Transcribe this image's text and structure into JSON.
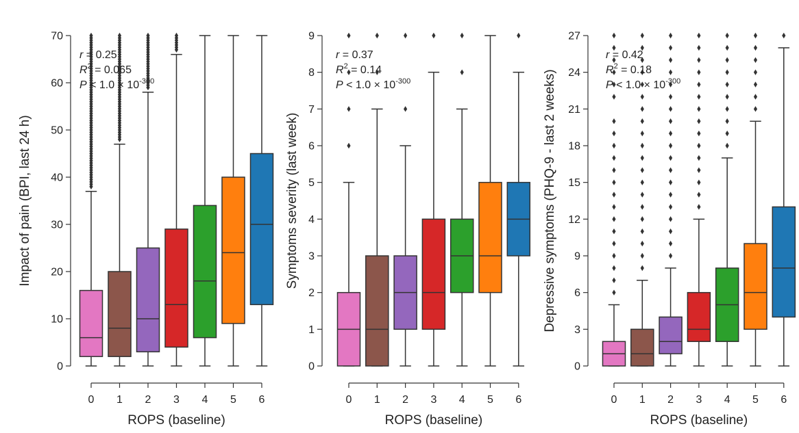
{
  "chart_data": [
    {
      "type": "box",
      "xlabel": "ROPS (baseline)",
      "ylabel": "Impact of pain (BPI, last 24 h)",
      "categories": [
        "0",
        "1",
        "2",
        "3",
        "4",
        "5",
        "6"
      ],
      "colors": [
        "#e377c2",
        "#8c564b",
        "#9467bd",
        "#d62728",
        "#2ca02c",
        "#ff7f0e",
        "#1f77b4"
      ],
      "ylim": [
        0,
        70
      ],
      "yticks": [
        0,
        10,
        20,
        30,
        40,
        50,
        60,
        70
      ],
      "boxes": [
        {
          "min": 0,
          "q1": 2,
          "median": 6,
          "q3": 16,
          "max": 37,
          "outlier_start": 38,
          "outlier_end": 70
        },
        {
          "min": 0,
          "q1": 2,
          "median": 8,
          "q3": 20,
          "max": 47,
          "outlier_start": 48,
          "outlier_end": 70
        },
        {
          "min": 0,
          "q1": 3,
          "median": 10,
          "q3": 25,
          "max": 58,
          "outlier_start": 59,
          "outlier_end": 70
        },
        {
          "min": 0,
          "q1": 4,
          "median": 13,
          "q3": 29,
          "max": 66,
          "outlier_start": 67,
          "outlier_end": 70
        },
        {
          "min": 0,
          "q1": 6,
          "median": 18,
          "q3": 34,
          "max": 70
        },
        {
          "min": 0,
          "q1": 9,
          "median": 24,
          "q3": 40,
          "max": 70
        },
        {
          "min": 0,
          "q1": 13,
          "median": 30,
          "q3": 45,
          "max": 70
        }
      ],
      "stats": {
        "r_label": "r",
        "r_value": " = 0.25",
        "r2_label": "R",
        "r2_sup": "2",
        "r2_value": " = 0.065",
        "p_label": "P",
        "p_value": " < 1.0 × 10",
        "p_exp": "-300"
      }
    },
    {
      "type": "box",
      "xlabel": "ROPS (baseline)",
      "ylabel": "Symptoms severity (last week)",
      "categories": [
        "0",
        "1",
        "2",
        "3",
        "4",
        "5",
        "6"
      ],
      "colors": [
        "#e377c2",
        "#8c564b",
        "#9467bd",
        "#d62728",
        "#2ca02c",
        "#ff7f0e",
        "#1f77b4"
      ],
      "ylim": [
        0,
        9
      ],
      "yticks": [
        0,
        1,
        2,
        3,
        4,
        5,
        6,
        7,
        8,
        9
      ],
      "boxes": [
        {
          "min": 0,
          "q1": 0,
          "median": 1,
          "q3": 2,
          "max": 5,
          "outliers": [
            6,
            7,
            8,
            9
          ]
        },
        {
          "min": 0,
          "q1": 0,
          "median": 1,
          "q3": 3,
          "max": 7,
          "outliers": [
            8,
            9
          ]
        },
        {
          "min": 0,
          "q1": 1,
          "median": 2,
          "q3": 3,
          "max": 6,
          "outliers": [
            7,
            9
          ]
        },
        {
          "min": 0,
          "q1": 1,
          "median": 2,
          "q3": 4,
          "max": 8,
          "outliers": [
            9
          ]
        },
        {
          "min": 0,
          "q1": 2,
          "median": 3,
          "q3": 4,
          "max": 7,
          "outliers": [
            8,
            9
          ]
        },
        {
          "min": 0,
          "q1": 2,
          "median": 3,
          "q3": 5,
          "max": 9,
          "outliers": []
        },
        {
          "min": 0,
          "q1": 3,
          "median": 4,
          "q3": 5,
          "max": 8,
          "outliers": [
            9
          ]
        }
      ],
      "stats": {
        "r_label": "r",
        "r_value": " = 0.37",
        "r2_label": "R",
        "r2_sup": "2",
        "r2_value": " = 0.14",
        "p_label": "P",
        "p_value": " < 1.0 × 10",
        "p_exp": "-300"
      }
    },
    {
      "type": "box",
      "xlabel": "ROPS (baseline)",
      "ylabel": "Depressive symptoms (PHQ-9 - last 2 weeks)",
      "categories": [
        "0",
        "1",
        "2",
        "3",
        "4",
        "5",
        "6"
      ],
      "colors": [
        "#e377c2",
        "#8c564b",
        "#9467bd",
        "#d62728",
        "#2ca02c",
        "#ff7f0e",
        "#1f77b4"
      ],
      "ylim": [
        0,
        27
      ],
      "yticks": [
        0,
        3,
        6,
        9,
        12,
        15,
        18,
        21,
        24,
        27
      ],
      "boxes": [
        {
          "min": 0,
          "q1": 0,
          "median": 1,
          "q3": 2,
          "max": 5,
          "outliers": [
            6,
            7,
            8,
            9,
            10,
            11,
            12,
            13,
            14,
            15,
            16,
            17,
            18,
            19,
            20,
            22,
            23,
            24,
            25,
            26,
            27
          ]
        },
        {
          "min": 0,
          "q1": 0,
          "median": 1,
          "q3": 3,
          "max": 7,
          "outliers": [
            8,
            9,
            10,
            11,
            12,
            13,
            14,
            15,
            16,
            17,
            18,
            19,
            20,
            21,
            22,
            23,
            24,
            25,
            26,
            27
          ]
        },
        {
          "min": 0,
          "q1": 1,
          "median": 2,
          "q3": 4,
          "max": 8,
          "outliers": [
            9,
            10,
            11,
            12,
            13,
            14,
            15,
            16,
            17,
            18,
            19,
            20,
            21,
            22,
            23,
            24,
            25,
            26,
            27
          ]
        },
        {
          "min": 0,
          "q1": 2,
          "median": 3,
          "q3": 6,
          "max": 12,
          "outliers": [
            13,
            14,
            15,
            16,
            17,
            18,
            19,
            20,
            21,
            22,
            23,
            24,
            25,
            26,
            27
          ]
        },
        {
          "min": 0,
          "q1": 2,
          "median": 5,
          "q3": 8,
          "max": 17,
          "outliers": [
            18,
            19,
            20,
            21,
            22,
            23,
            24,
            25,
            26,
            27
          ]
        },
        {
          "min": 0,
          "q1": 3,
          "median": 6,
          "q3": 10,
          "max": 20,
          "outliers": [
            21,
            22,
            23,
            24,
            25,
            26,
            27
          ]
        },
        {
          "min": 0,
          "q1": 4,
          "median": 8,
          "q3": 13,
          "max": 26,
          "outliers": [
            27
          ]
        }
      ],
      "stats": {
        "r_label": "r",
        "r_value": " = 0.42",
        "r2_label": "R",
        "r2_sup": "2",
        "r2_value": " = 0.18",
        "p_label": "P",
        "p_value": " < 1.0 × 10",
        "p_exp": "-300"
      }
    }
  ]
}
